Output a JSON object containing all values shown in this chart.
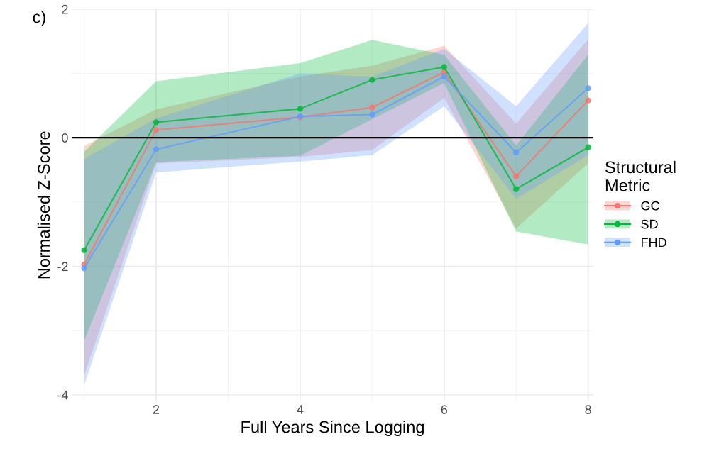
{
  "chart_data": {
    "type": "line",
    "xlabel": "Full Years Since Logging",
    "ylabel": "Normalised Z-Score",
    "legend_title": "Structural\nMetric",
    "annotations": [
      "c)"
    ],
    "xlim": [
      0.83,
      8.07
    ],
    "ylim": [
      -4.1,
      2.0
    ],
    "xticks": [
      2,
      4,
      6,
      8
    ],
    "yticks": [
      -4,
      -2,
      0,
      2
    ],
    "grid": true,
    "legend": "right",
    "marker": "circle",
    "line_style": "solid",
    "ref_lines": [
      {
        "axis": "y",
        "value": 0,
        "color": "#000000"
      }
    ],
    "series": [
      {
        "name": "GC",
        "color": "#f8766d",
        "x": [
          1,
          2,
          4,
          5,
          6,
          7,
          8
        ],
        "values": [
          -1.97,
          0.12,
          0.32,
          0.47,
          1.02,
          -0.6,
          0.58
        ],
        "lower": [
          -3.7,
          -0.4,
          -0.3,
          -0.19,
          0.62,
          -1.41,
          -0.4
        ],
        "upper": [
          -0.13,
          0.44,
          0.95,
          1.12,
          1.43,
          0.22,
          1.53
        ]
      },
      {
        "name": "SD",
        "color": "#00ba38",
        "x": [
          1,
          2,
          4,
          5,
          6,
          7,
          8
        ],
        "values": [
          -1.75,
          0.24,
          0.45,
          0.9,
          1.1,
          -0.8,
          -0.15
        ],
        "lower": [
          -3.16,
          -0.38,
          -0.28,
          0.29,
          0.85,
          -1.46,
          -1.66
        ],
        "upper": [
          -0.22,
          0.88,
          1.16,
          1.52,
          1.29,
          -0.12,
          1.29
        ]
      },
      {
        "name": "FHD",
        "color": "#619cff",
        "x": [
          1,
          2,
          4,
          5,
          6,
          7,
          8
        ],
        "values": [
          -2.03,
          -0.18,
          0.33,
          0.36,
          0.95,
          -0.23,
          0.77
        ],
        "lower": [
          -3.85,
          -0.54,
          -0.37,
          -0.27,
          0.49,
          -0.95,
          -0.27
        ],
        "upper": [
          -0.33,
          0.3,
          1.0,
          0.95,
          1.38,
          0.49,
          1.78
        ]
      }
    ]
  }
}
